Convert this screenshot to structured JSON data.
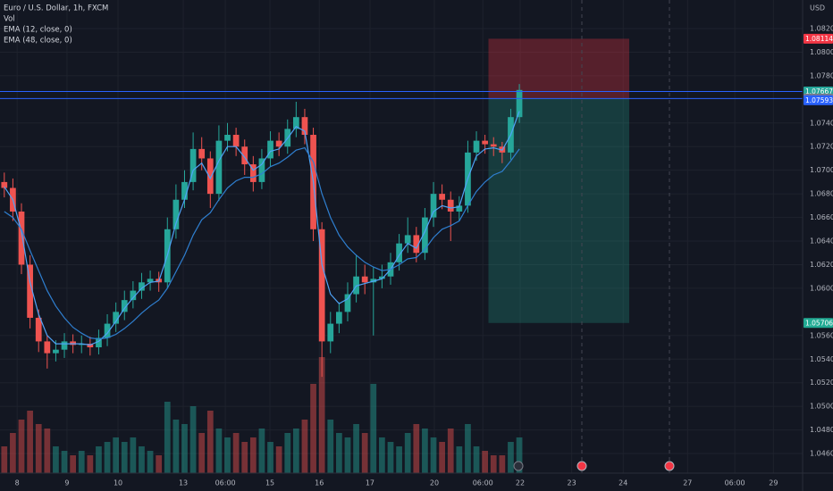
{
  "chart_data": {
    "type": "candlestick",
    "title": "Euro / U.S. Dollar, 1h, FXCM",
    "currency": "USD",
    "up_color": "#26a69a",
    "down_color": "#ef5350",
    "xlim": [
      0,
      93.5
    ],
    "xticks": [
      {
        "value": 2.0,
        "label": "8"
      },
      {
        "value": 7.8,
        "label": "9"
      },
      {
        "value": 13.75,
        "label": "10"
      },
      {
        "value": 21.35,
        "label": "13"
      },
      {
        "value": 26.25,
        "label": "06:00"
      },
      {
        "value": 31.45,
        "label": "15"
      },
      {
        "value": 37.2,
        "label": "16"
      },
      {
        "value": 43.1,
        "label": "17"
      },
      {
        "value": 50.6,
        "label": "20"
      },
      {
        "value": 56.25,
        "label": "06:00"
      },
      {
        "value": 60.6,
        "label": "22"
      },
      {
        "value": 66.6,
        "label": "23"
      },
      {
        "value": 72.6,
        "label": "24"
      },
      {
        "value": 80.1,
        "label": "27"
      },
      {
        "value": 85.6,
        "label": "06:00"
      },
      {
        "value": 90.1,
        "label": "29"
      }
    ],
    "ylim": [
      1.04434,
      1.08442
    ],
    "yticks": [
      {
        "value": 1.082,
        "label": "1.08200"
      },
      {
        "value": 1.08,
        "label": "1.08000"
      },
      {
        "value": 1.078,
        "label": "1.07800"
      },
      {
        "value": 1.074,
        "label": "1.07400"
      },
      {
        "value": 1.072,
        "label": "1.07200"
      },
      {
        "value": 1.07,
        "label": "1.07000"
      },
      {
        "value": 1.068,
        "label": "1.06800"
      },
      {
        "value": 1.066,
        "label": "1.06600"
      },
      {
        "value": 1.064,
        "label": "1.06400"
      },
      {
        "value": 1.062,
        "label": "1.06200"
      },
      {
        "value": 1.06,
        "label": "1.06000"
      },
      {
        "value": 1.056,
        "label": "1.05600"
      },
      {
        "value": 1.054,
        "label": "1.05400"
      },
      {
        "value": 1.052,
        "label": "1.05200"
      },
      {
        "value": 1.05,
        "label": "1.05000"
      },
      {
        "value": 1.048,
        "label": "1.04800"
      },
      {
        "value": 1.046,
        "label": "1.04600"
      }
    ],
    "open": [
      1.069,
      1.0685,
      1.0665,
      1.062,
      1.0575,
      1.0555,
      1.0545,
      1.0548,
      1.0555,
      1.0552,
      1.0553,
      1.055,
      1.0558,
      1.057,
      1.058,
      1.059,
      1.0598,
      1.0605,
      1.0608,
      1.0605,
      1.065,
      1.0675,
      1.069,
      1.0718,
      1.071,
      1.068,
      1.0725,
      1.073,
      1.072,
      1.0705,
      1.069,
      1.071,
      1.0725,
      1.072,
      1.0735,
      1.0745,
      1.073,
      1.065,
      1.0555,
      1.057,
      1.058,
      1.0595,
      1.061,
      1.0605,
      1.0608,
      1.061,
      1.0622,
      1.0638,
      1.0645,
      1.063,
      1.066,
      1.068,
      1.0675,
      1.0665,
      1.067,
      1.0715,
      1.0725,
      1.0722,
      1.072,
      1.0715,
      1.0745
    ],
    "high": [
      1.0698,
      1.0693,
      1.0672,
      1.0628,
      1.0582,
      1.056,
      1.0556,
      1.0562,
      1.0561,
      1.056,
      1.0559,
      1.0565,
      1.0578,
      1.0588,
      1.0598,
      1.0606,
      1.0613,
      1.0615,
      1.0614,
      1.066,
      1.0688,
      1.07,
      1.0732,
      1.0728,
      1.0716,
      1.0738,
      1.074,
      1.0736,
      1.0726,
      1.0712,
      1.0718,
      1.0733,
      1.0732,
      1.0743,
      1.0758,
      1.0752,
      1.0736,
      1.0656,
      1.058,
      1.0588,
      1.0605,
      1.0628,
      1.062,
      1.0618,
      1.062,
      1.063,
      1.0646,
      1.066,
      1.0652,
      1.0668,
      1.069,
      1.0688,
      1.0682,
      1.0678,
      1.0725,
      1.0733,
      1.073,
      1.0728,
      1.0724,
      1.0752,
      1.0773
    ],
    "low": [
      1.0677,
      1.0657,
      1.0612,
      1.0566,
      1.0546,
      1.0532,
      1.0538,
      1.0541,
      1.0545,
      1.0545,
      1.0543,
      1.0544,
      1.0551,
      1.0563,
      1.0573,
      1.0583,
      1.0591,
      1.0598,
      1.0597,
      1.06,
      1.0642,
      1.0668,
      1.0683,
      1.07,
      1.0668,
      1.0674,
      1.0716,
      1.0712,
      1.0696,
      1.0682,
      1.0684,
      1.0703,
      1.0712,
      1.0714,
      1.0728,
      1.0722,
      1.064,
      1.0525,
      1.0545,
      1.0562,
      1.0572,
      1.0588,
      1.0595,
      1.056,
      1.06,
      1.0603,
      1.0615,
      1.063,
      1.0622,
      1.0624,
      1.0652,
      1.0667,
      1.064,
      1.0657,
      1.0664,
      1.0708,
      1.0714,
      1.0712,
      1.0706,
      1.0709,
      1.074
    ],
    "close": [
      1.0685,
      1.0665,
      1.062,
      1.0575,
      1.0555,
      1.0545,
      1.0548,
      1.0555,
      1.0552,
      1.0553,
      1.055,
      1.0558,
      1.057,
      1.058,
      1.059,
      1.0598,
      1.0605,
      1.0608,
      1.0605,
      1.065,
      1.0675,
      1.069,
      1.0718,
      1.071,
      1.068,
      1.0725,
      1.073,
      1.072,
      1.0705,
      1.069,
      1.071,
      1.0725,
      1.072,
      1.0735,
      1.0745,
      1.073,
      1.065,
      1.0555,
      1.057,
      1.058,
      1.0595,
      1.061,
      1.0605,
      1.0608,
      1.061,
      1.0622,
      1.0638,
      1.0645,
      1.063,
      1.066,
      1.068,
      1.0675,
      1.0665,
      1.067,
      1.0715,
      1.0725,
      1.0722,
      1.072,
      1.0715,
      1.0745,
      1.0768
    ],
    "volume": {
      "name": "Vol",
      "values": [
        30,
        45,
        60,
        70,
        55,
        50,
        30,
        25,
        20,
        25,
        20,
        30,
        35,
        40,
        35,
        40,
        30,
        25,
        20,
        80,
        60,
        55,
        75,
        45,
        70,
        50,
        40,
        45,
        35,
        40,
        50,
        35,
        30,
        45,
        50,
        60,
        100,
        130,
        60,
        45,
        40,
        55,
        45,
        100,
        40,
        35,
        30,
        45,
        55,
        50,
        40,
        35,
        50,
        30,
        55,
        30,
        25,
        20,
        20,
        35,
        40
      ]
    },
    "series": [
      {
        "name": "EMA (12, close, 0)",
        "color": "#4fa3f7",
        "values": [
          1.0686,
          1.0675,
          1.0648,
          1.0605,
          1.0578,
          1.056,
          1.0553,
          1.0553,
          1.0553,
          1.0553,
          1.0552,
          1.0555,
          1.0562,
          1.0572,
          1.0583,
          1.0592,
          1.06,
          1.0605,
          1.0606,
          1.0628,
          1.0655,
          1.0675,
          1.07,
          1.0706,
          1.0693,
          1.0708,
          1.072,
          1.072,
          1.0711,
          1.07,
          1.0705,
          1.0716,
          1.0718,
          1.0727,
          1.0737,
          1.0733,
          1.069,
          1.062,
          1.0595,
          1.0587,
          1.0591,
          1.0602,
          1.0604,
          1.0606,
          1.0608,
          1.0616,
          1.0628,
          1.0638,
          1.0634,
          1.0648,
          1.0665,
          1.067,
          1.0668,
          1.0669,
          1.0693,
          1.0712,
          1.0718,
          1.0719,
          1.0717,
          1.073,
          1.075
        ]
      },
      {
        "name": "EMA (48, close, 0)",
        "color": "#2f7fd0",
        "values": [
          1.0665,
          1.066,
          1.065,
          1.0632,
          1.0615,
          1.0598,
          1.0585,
          1.0575,
          1.0567,
          1.0562,
          1.0558,
          1.0557,
          1.0558,
          1.0561,
          1.0566,
          1.0572,
          1.0579,
          1.0585,
          1.059,
          1.06,
          1.0614,
          1.0628,
          1.0645,
          1.0658,
          1.0664,
          1.0675,
          1.0685,
          1.0691,
          1.0694,
          1.0694,
          1.0697,
          1.0703,
          1.0706,
          1.0711,
          1.0717,
          1.0719,
          1.0707,
          1.068,
          1.066,
          1.0645,
          1.0635,
          1.0628,
          1.0622,
          1.0618,
          1.0615,
          1.0616,
          1.062,
          1.0625,
          1.0626,
          1.0633,
          1.0643,
          1.065,
          1.0653,
          1.0657,
          1.067,
          1.0682,
          1.069,
          1.0696,
          1.0699,
          1.0708,
          1.0718
        ]
      }
    ],
    "position": {
      "stop": 1.08114,
      "entry": 1.07607,
      "target": 1.05706,
      "x_start": 56.9,
      "x_end": 73.3,
      "stop_color": "#f23645",
      "target_color": "#22ab94"
    },
    "markers": [
      {
        "value": 1.07667,
        "color": "#26a69a",
        "line": "#2962ff"
      },
      {
        "value": 1.07607,
        "color": "#787b86",
        "line": "#2962ff"
      },
      {
        "value": 1.07593,
        "color": "#2962ff"
      }
    ]
  }
}
